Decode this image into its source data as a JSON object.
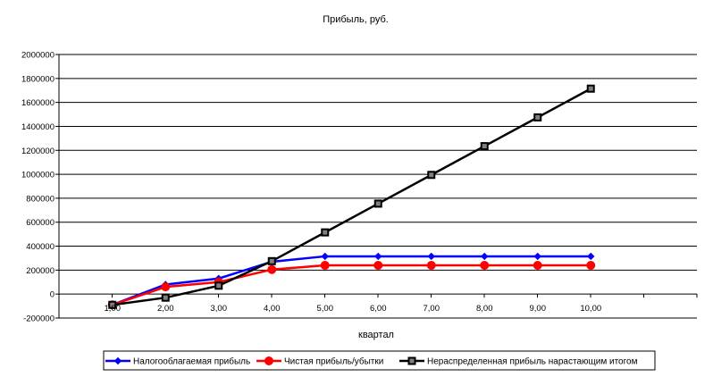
{
  "chart_data": {
    "type": "line",
    "title": "Прибыль, руб.",
    "xlabel": "квартал",
    "ylabel": "",
    "ylim": [
      -200000,
      2000000
    ],
    "y_ticks": [
      -200000,
      0,
      200000,
      400000,
      600000,
      800000,
      1000000,
      1200000,
      1400000,
      1600000,
      1800000,
      2000000
    ],
    "y_tick_labels": [
      "-200000",
      "0",
      "200000",
      "400000",
      "600000",
      "800000",
      "1000000",
      "1200000",
      "1400000",
      "1600000",
      "1800000",
      "2000000"
    ],
    "x": [
      1,
      2,
      3,
      4,
      5,
      6,
      7,
      8,
      9,
      10
    ],
    "x_tick_labels": [
      "1,00",
      "2,00",
      "3,00",
      "4,00",
      "5,00",
      "6,00",
      "7,00",
      "8,00",
      "9,00",
      "10,00"
    ],
    "grid": "horizontal",
    "legend_position": "bottom",
    "series": [
      {
        "name": "Налогооблагаемая прибыль",
        "color": "#0000ff",
        "marker": "diamond",
        "values": [
          -90000,
          80000,
          130000,
          270000,
          315000,
          315000,
          315000,
          315000,
          315000,
          315000
        ]
      },
      {
        "name": "Чистая прибыль/убытки",
        "color": "#ff0000",
        "marker": "circle",
        "values": [
          -90000,
          60000,
          100000,
          205000,
          240000,
          240000,
          240000,
          240000,
          240000,
          240000
        ]
      },
      {
        "name": "Нераспределенная прибыль нарастающим итогом",
        "color": "#000000",
        "marker": "square",
        "values": [
          -90000,
          -30000,
          70000,
          275000,
          515000,
          755000,
          995000,
          1235000,
          1475000,
          1715000
        ]
      }
    ]
  }
}
